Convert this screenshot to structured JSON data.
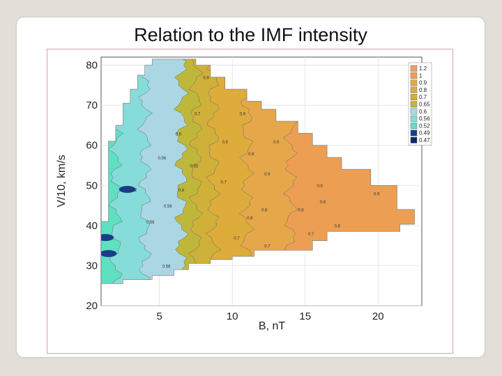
{
  "slide": {
    "title": "Relation to the IMF intensity"
  },
  "chart_data": {
    "type": "heatmap",
    "title": "",
    "xlabel": "B, nT",
    "ylabel": "V/10, km/s",
    "xlim": [
      1,
      23
    ],
    "ylim": [
      20,
      82
    ],
    "x_ticks": [
      "5",
      "10",
      "15",
      "20"
    ],
    "y_ticks": [
      "20",
      "30",
      "40",
      "50",
      "60",
      "70",
      "80"
    ],
    "grid": true,
    "legend_position": "top-right",
    "legend": [
      {
        "label": "1.2",
        "color": "#f19a62"
      },
      {
        "label": "1",
        "color": "#ec9f53"
      },
      {
        "label": "0.9",
        "color": "#e6a74a"
      },
      {
        "label": "0.8",
        "color": "#ddac3b"
      },
      {
        "label": "0.7",
        "color": "#cfb039"
      },
      {
        "label": "0.65",
        "color": "#bfb73a"
      },
      {
        "label": "0.6",
        "color": "#abd6e3"
      },
      {
        "label": "0.56",
        "color": "#86dcd8"
      },
      {
        "label": "0.52",
        "color": "#5fe0c0"
      },
      {
        "label": "0.49",
        "color": "#1a3d8a"
      },
      {
        "label": "0.47",
        "color": "#0a2a66"
      }
    ],
    "bands_by_B": [
      {
        "b_range": [
          1,
          2
        ],
        "level": "0.52"
      },
      {
        "b_range": [
          2,
          4
        ],
        "level": "0.56"
      },
      {
        "b_range": [
          4,
          6.5
        ],
        "level": "0.6"
      },
      {
        "b_range": [
          6.5,
          7.5
        ],
        "level": "0.65"
      },
      {
        "b_range": [
          7.5,
          8.7
        ],
        "level": "0.7"
      },
      {
        "b_range": [
          8.7,
          11
        ],
        "level": "0.8"
      },
      {
        "b_range": [
          11,
          14
        ],
        "level": "0.9"
      },
      {
        "b_range": [
          14,
          22
        ],
        "level": "1"
      }
    ],
    "contour_labels": [
      {
        "text": "0.52",
        "b": 2.9,
        "v": 48.5
      },
      {
        "text": "0.56",
        "b": 4.9,
        "v": 56.5
      },
      {
        "text": "0.56",
        "b": 4.1,
        "v": 40.5
      },
      {
        "text": "0.56",
        "b": 5.2,
        "v": 29.5
      },
      {
        "text": "0.56",
        "b": 5.3,
        "v": 44.5
      },
      {
        "text": "0.6",
        "b": 6.3,
        "v": 48.5
      },
      {
        "text": "0.6",
        "b": 6.1,
        "v": 62.5
      },
      {
        "text": "0.65",
        "b": 7.1,
        "v": 54.5
      },
      {
        "text": "0.7",
        "b": 7.4,
        "v": 67.5
      },
      {
        "text": "0.7",
        "b": 9.2,
        "v": 50.5
      },
      {
        "text": "0.7",
        "b": 10.1,
        "v": 36.5
      },
      {
        "text": "0.7",
        "b": 12.2,
        "v": 34.5
      },
      {
        "text": "0.7",
        "b": 15.2,
        "v": 37.5
      },
      {
        "text": "0.8",
        "b": 8.0,
        "v": 76.5
      },
      {
        "text": "0.8",
        "b": 9.3,
        "v": 60.5
      },
      {
        "text": "0.8",
        "b": 11.1,
        "v": 57.5
      },
      {
        "text": "0.8",
        "b": 11.0,
        "v": 41.5
      },
      {
        "text": "0.8",
        "b": 12.0,
        "v": 43.5
      },
      {
        "text": "0.8",
        "b": 14.5,
        "v": 43.5
      },
      {
        "text": "0.8",
        "b": 16.0,
        "v": 45.5
      },
      {
        "text": "0.8",
        "b": 17.0,
        "v": 39.5
      },
      {
        "text": "0.9",
        "b": 10.5,
        "v": 67.5
      },
      {
        "text": "0.9",
        "b": 12.8,
        "v": 60.5
      },
      {
        "text": "0.9",
        "b": 12.2,
        "v": 52.5
      },
      {
        "text": "0.9",
        "b": 15.8,
        "v": 49.5
      },
      {
        "text": "0.9",
        "b": 19.7,
        "v": 47.5
      }
    ]
  }
}
